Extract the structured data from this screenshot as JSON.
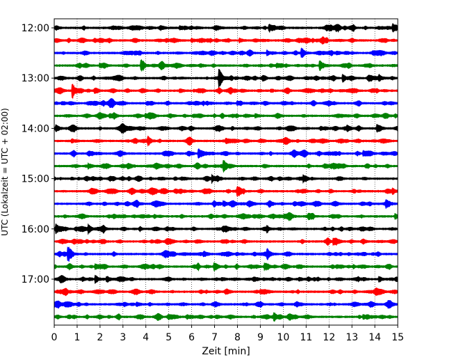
{
  "chart_data": {
    "type": "line",
    "title": "",
    "xlabel": "Zeit  [min]",
    "ylabel": "UTC (Lokalzeit = UTC + 02:00)",
    "xlim": [
      0,
      15
    ],
    "x_ticks": [
      "0",
      "1",
      "2",
      "3",
      "4",
      "5",
      "6",
      "7",
      "8",
      "9",
      "10",
      "11",
      "12",
      "13",
      "14",
      "15"
    ],
    "y_tick_labels": [
      "12:00",
      "13:00",
      "14:00",
      "15:00",
      "16:00",
      "17:00"
    ],
    "y_tick_times": [
      "12:00",
      "13:00",
      "14:00",
      "15:00",
      "16:00",
      "17:00"
    ],
    "grid": "vertical dotted at each minute",
    "color_cycle": [
      "#000000",
      "#ff0000",
      "#0000ff",
      "#008000"
    ],
    "traces": [
      {
        "start": "12:00",
        "color": "#000000",
        "events": [
          {
            "t": 9.4,
            "amp": 1.0
          },
          {
            "t": 14.8,
            "amp": 0.9
          },
          {
            "t": 5.5,
            "amp": 0.5
          }
        ]
      },
      {
        "start": "12:15",
        "color": "#ff0000",
        "events": [
          {
            "t": 6.0,
            "amp": 0.5
          },
          {
            "t": 8.1,
            "amp": 0.5
          }
        ]
      },
      {
        "start": "12:30",
        "color": "#0000ff",
        "events": [
          {
            "t": 10.8,
            "amp": 0.9
          },
          {
            "t": 9.3,
            "amp": 0.7
          }
        ]
      },
      {
        "start": "12:45",
        "color": "#008000",
        "events": [
          {
            "t": 3.8,
            "amp": 1.4
          },
          {
            "t": 11.6,
            "amp": 1.6
          },
          {
            "t": 2.0,
            "amp": 0.5
          }
        ]
      },
      {
        "start": "13:00",
        "color": "#000000",
        "events": [
          {
            "t": 7.2,
            "amp": 2.2
          },
          {
            "t": 12.6,
            "amp": 1.0
          },
          {
            "t": 14.2,
            "amp": 0.8
          }
        ]
      },
      {
        "start": "13:15",
        "color": "#ff0000",
        "events": [
          {
            "t": 0.8,
            "amp": 2.0
          },
          {
            "t": 5.5,
            "amp": 0.4
          }
        ]
      },
      {
        "start": "13:30",
        "color": "#0000ff",
        "events": [
          {
            "t": 8.0,
            "amp": 0.5
          }
        ]
      },
      {
        "start": "13:45",
        "color": "#008000",
        "events": [
          {
            "t": 8.8,
            "amp": 0.6
          },
          {
            "t": 4.0,
            "amp": 0.4
          }
        ]
      },
      {
        "start": "14:00",
        "color": "#000000",
        "events": [
          {
            "t": 0.1,
            "amp": 0.8
          },
          {
            "t": 14.1,
            "amp": 0.8
          },
          {
            "t": 12.8,
            "amp": 0.5
          }
        ]
      },
      {
        "start": "14:15",
        "color": "#ff0000",
        "events": [
          {
            "t": 4.1,
            "amp": 1.0
          },
          {
            "t": 7.5,
            "amp": 0.5
          }
        ]
      },
      {
        "start": "14:30",
        "color": "#0000ff",
        "events": [
          {
            "t": 6.3,
            "amp": 1.3
          },
          {
            "t": 13.5,
            "amp": 0.7
          }
        ]
      },
      {
        "start": "14:45",
        "color": "#008000",
        "events": [
          {
            "t": 7.4,
            "amp": 1.4
          },
          {
            "t": 1.5,
            "amp": 0.5
          }
        ]
      },
      {
        "start": "15:00",
        "color": "#000000",
        "events": [
          {
            "t": 6.9,
            "amp": 0.9
          },
          {
            "t": 10.9,
            "amp": 0.7
          }
        ]
      },
      {
        "start": "15:15",
        "color": "#ff0000",
        "events": [
          {
            "t": 8.0,
            "amp": 0.8
          },
          {
            "t": 14.8,
            "amp": 0.5
          }
        ]
      },
      {
        "start": "15:30",
        "color": "#0000ff",
        "events": [
          {
            "t": 7.4,
            "amp": 0.6
          },
          {
            "t": 14.5,
            "amp": 0.6
          }
        ]
      },
      {
        "start": "15:45",
        "color": "#008000",
        "events": [
          {
            "t": 14.9,
            "amp": 0.6
          },
          {
            "t": 11.1,
            "amp": 0.5
          }
        ]
      },
      {
        "start": "16:00",
        "color": "#000000",
        "events": [
          {
            "t": 0.1,
            "amp": 0.8
          },
          {
            "t": 1.5,
            "amp": 0.9
          },
          {
            "t": 9.3,
            "amp": 0.6
          }
        ]
      },
      {
        "start": "16:15",
        "color": "#ff0000",
        "events": [
          {
            "t": 12.2,
            "amp": 0.6
          }
        ]
      },
      {
        "start": "16:30",
        "color": "#0000ff",
        "events": [
          {
            "t": 0.6,
            "amp": 2.0
          },
          {
            "t": 9.3,
            "amp": 1.2
          }
        ]
      },
      {
        "start": "16:45",
        "color": "#008000",
        "events": [
          {
            "t": 7.0,
            "amp": 0.7
          },
          {
            "t": 9.2,
            "amp": 0.8
          },
          {
            "t": 1.8,
            "amp": 0.6
          }
        ]
      },
      {
        "start": "17:00",
        "color": "#000000",
        "events": [
          {
            "t": 1.8,
            "amp": 0.9
          },
          {
            "t": 2.3,
            "amp": 0.8
          },
          {
            "t": 14.2,
            "amp": 0.6
          }
        ]
      },
      {
        "start": "17:15",
        "color": "#ff0000",
        "events": [
          {
            "t": 9.0,
            "amp": 0.4
          }
        ]
      },
      {
        "start": "17:30",
        "color": "#0000ff",
        "events": [
          {
            "t": 3.6,
            "amp": 0.5
          },
          {
            "t": 14.6,
            "amp": 0.5
          }
        ]
      },
      {
        "start": "17:45",
        "color": "#008000",
        "events": [
          {
            "t": 9.6,
            "amp": 1.1
          },
          {
            "t": 13.5,
            "amp": 0.6
          }
        ]
      }
    ]
  }
}
